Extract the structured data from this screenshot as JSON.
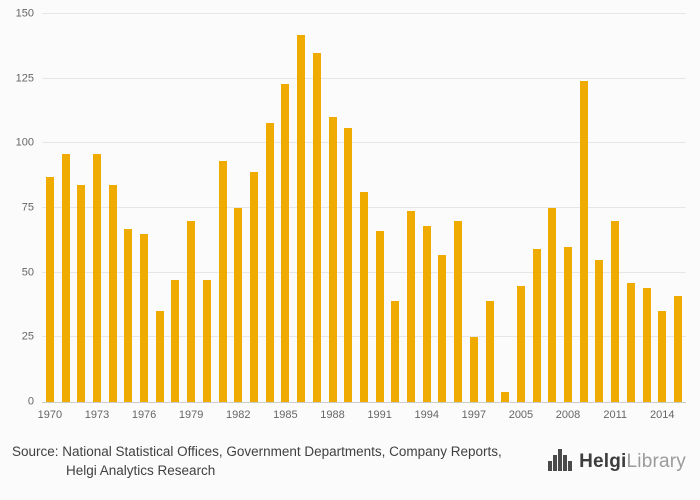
{
  "chart_data": {
    "type": "bar",
    "title": "",
    "xlabel": "",
    "ylabel": "",
    "categories": [
      "1970",
      "1971",
      "1972",
      "1973",
      "1974",
      "1975",
      "1976",
      "1977",
      "1978",
      "1979",
      "1980",
      "1981",
      "1982",
      "1983",
      "1984",
      "1985",
      "1986",
      "1987",
      "1988",
      "1989",
      "1990",
      "1991",
      "1992",
      "1993",
      "1994",
      "1995",
      "1996",
      "1997",
      "1998",
      "1999",
      "2005",
      "2006",
      "2007",
      "2008",
      "2009",
      "2010",
      "2011",
      "2012",
      "2013",
      "2014",
      "2015"
    ],
    "values": [
      87,
      96,
      84,
      96,
      84,
      67,
      65,
      35,
      47,
      70,
      47,
      93,
      75,
      89,
      108,
      123,
      142,
      135,
      110,
      106,
      81,
      66,
      39,
      74,
      68,
      57,
      70,
      25,
      39,
      4,
      45,
      59,
      75,
      60,
      124,
      55,
      70,
      46,
      44,
      35,
      41
    ],
    "ylim": [
      0,
      150
    ],
    "yticks": [
      0,
      25,
      50,
      75,
      100,
      125,
      150
    ],
    "xtick_labels": [
      "1970",
      "1973",
      "1976",
      "1979",
      "1982",
      "1985",
      "1988",
      "1991",
      "1994",
      "1997",
      "2005",
      "2008",
      "2011",
      "2014"
    ],
    "grid": true,
    "legend": "none",
    "bar_color": "#F0AB00"
  },
  "footer": {
    "source_line1": "Source: National Statistical Offices, Government Departments, Company Reports,",
    "source_line2": "Helgi Analytics Research",
    "brand": {
      "name_bold": "Helgi",
      "name_light": "Library"
    }
  },
  "colors": {
    "bar": "#F0AB00",
    "grid": "#E6E6E6",
    "axis_text": "#666666",
    "source_text": "#404040"
  }
}
